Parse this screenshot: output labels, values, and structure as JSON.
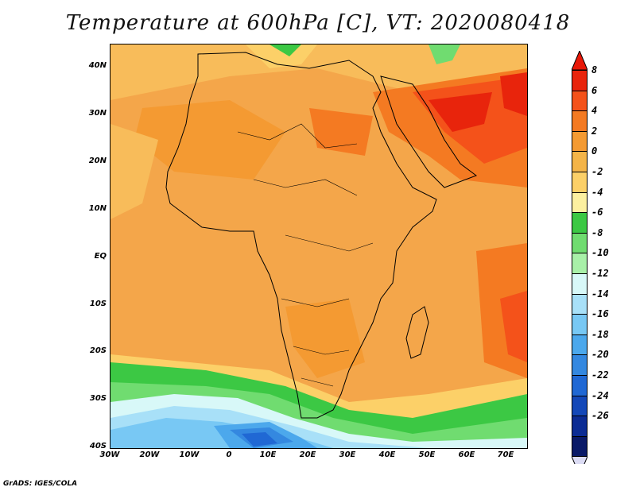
{
  "title": "Temperature at 600hPa [C], VT: 2020080418",
  "credit": "GrADS: IGES/COLA",
  "map": {
    "lat_labels": [
      "40N",
      "30N",
      "20N",
      "10N",
      "EQ",
      "10S",
      "20S",
      "30S",
      "40S"
    ],
    "lon_labels": [
      "30W",
      "20W",
      "10W",
      "0",
      "10E",
      "20E",
      "30E",
      "40E",
      "50E",
      "60E",
      "70E"
    ]
  },
  "colorbar": {
    "labels": [
      "8",
      "6",
      "4",
      "2",
      "0",
      "-2",
      "-4",
      "-6",
      "-8",
      "-10",
      "-12",
      "-14",
      "-16",
      "-18",
      "-20",
      "-22",
      "-24",
      "-26"
    ],
    "colors": [
      "#e8240c",
      "#f4521a",
      "#f47a22",
      "#f49a32",
      "#f4b448",
      "#fcd068",
      "#fcf0a0",
      "#3cc844",
      "#70dc70",
      "#a8f0a8",
      "#d8f8f8",
      "#a8e0f8",
      "#78c8f4",
      "#4ca8ec",
      "#3488e0",
      "#2068d4",
      "#1448b8",
      "#0c2c94",
      "#0a1a68"
    ],
    "top_arrow_color": "#e81808",
    "bottom_arrow_color": "#dcdcf4"
  }
}
